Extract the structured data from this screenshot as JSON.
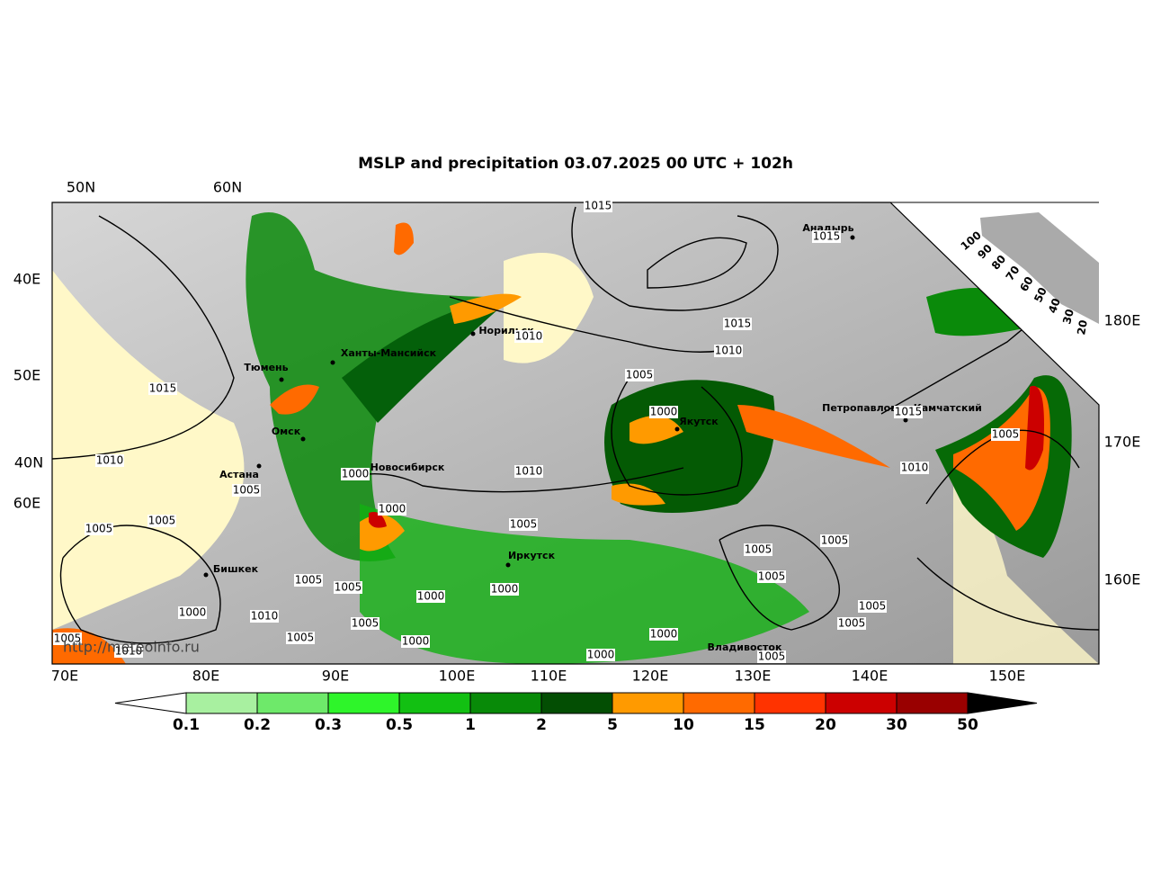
{
  "title": "MSLP and precipitation 03.07.2025 00 UTC + 102h",
  "top_labels": [
    "50N",
    "60N"
  ],
  "left_labels": [
    "40E",
    "50E",
    "40N",
    "60E"
  ],
  "right_labels": [
    "180E",
    "170E",
    "160E"
  ],
  "bottom_labels": [
    "70E",
    "80E",
    "90E",
    "100E",
    "110E",
    "120E",
    "130E",
    "140E",
    "150E"
  ],
  "cities": [
    "Анадырь",
    "Норильск",
    "Ханты-Мансийск",
    "Тюмень",
    "Петропавловск-Камчатский",
    "Якутск",
    "Омск",
    "Новосибирск",
    "Астана",
    "Иркутск",
    "Бишкек",
    "Владивосток"
  ],
  "isobar_labels": [
    "1015",
    "1015",
    "1015",
    "1010",
    "1010",
    "1005",
    "1015",
    "1000",
    "1015",
    "1005",
    "1010",
    "1010",
    "1000",
    "1010",
    "1005",
    "1000",
    "1005",
    "1005",
    "1005",
    "1005",
    "1005",
    "1005",
    "1005",
    "1005",
    "1000",
    "1000",
    "1005",
    "1000",
    "1010",
    "1005",
    "1005",
    "1000",
    "1005",
    "1005",
    "1000",
    "1010",
    "1000",
    "1005"
  ],
  "cloud_scale": [
    100,
    90,
    80,
    70,
    60,
    50,
    40,
    30,
    20
  ],
  "colorbar": {
    "labels": [
      0.1,
      0.2,
      0.3,
      0.5,
      1,
      2,
      5,
      10,
      15,
      20,
      30,
      50
    ],
    "colors": [
      "#a8f0a0",
      "#6ee96a",
      "#2ef52a",
      "#12c012",
      "#088a08",
      "#034e03",
      "#ff9a00",
      "#ff6a00",
      "#ff3300",
      "#cc0000",
      "#990000"
    ]
  },
  "source": "http://meteoinfo.ru"
}
